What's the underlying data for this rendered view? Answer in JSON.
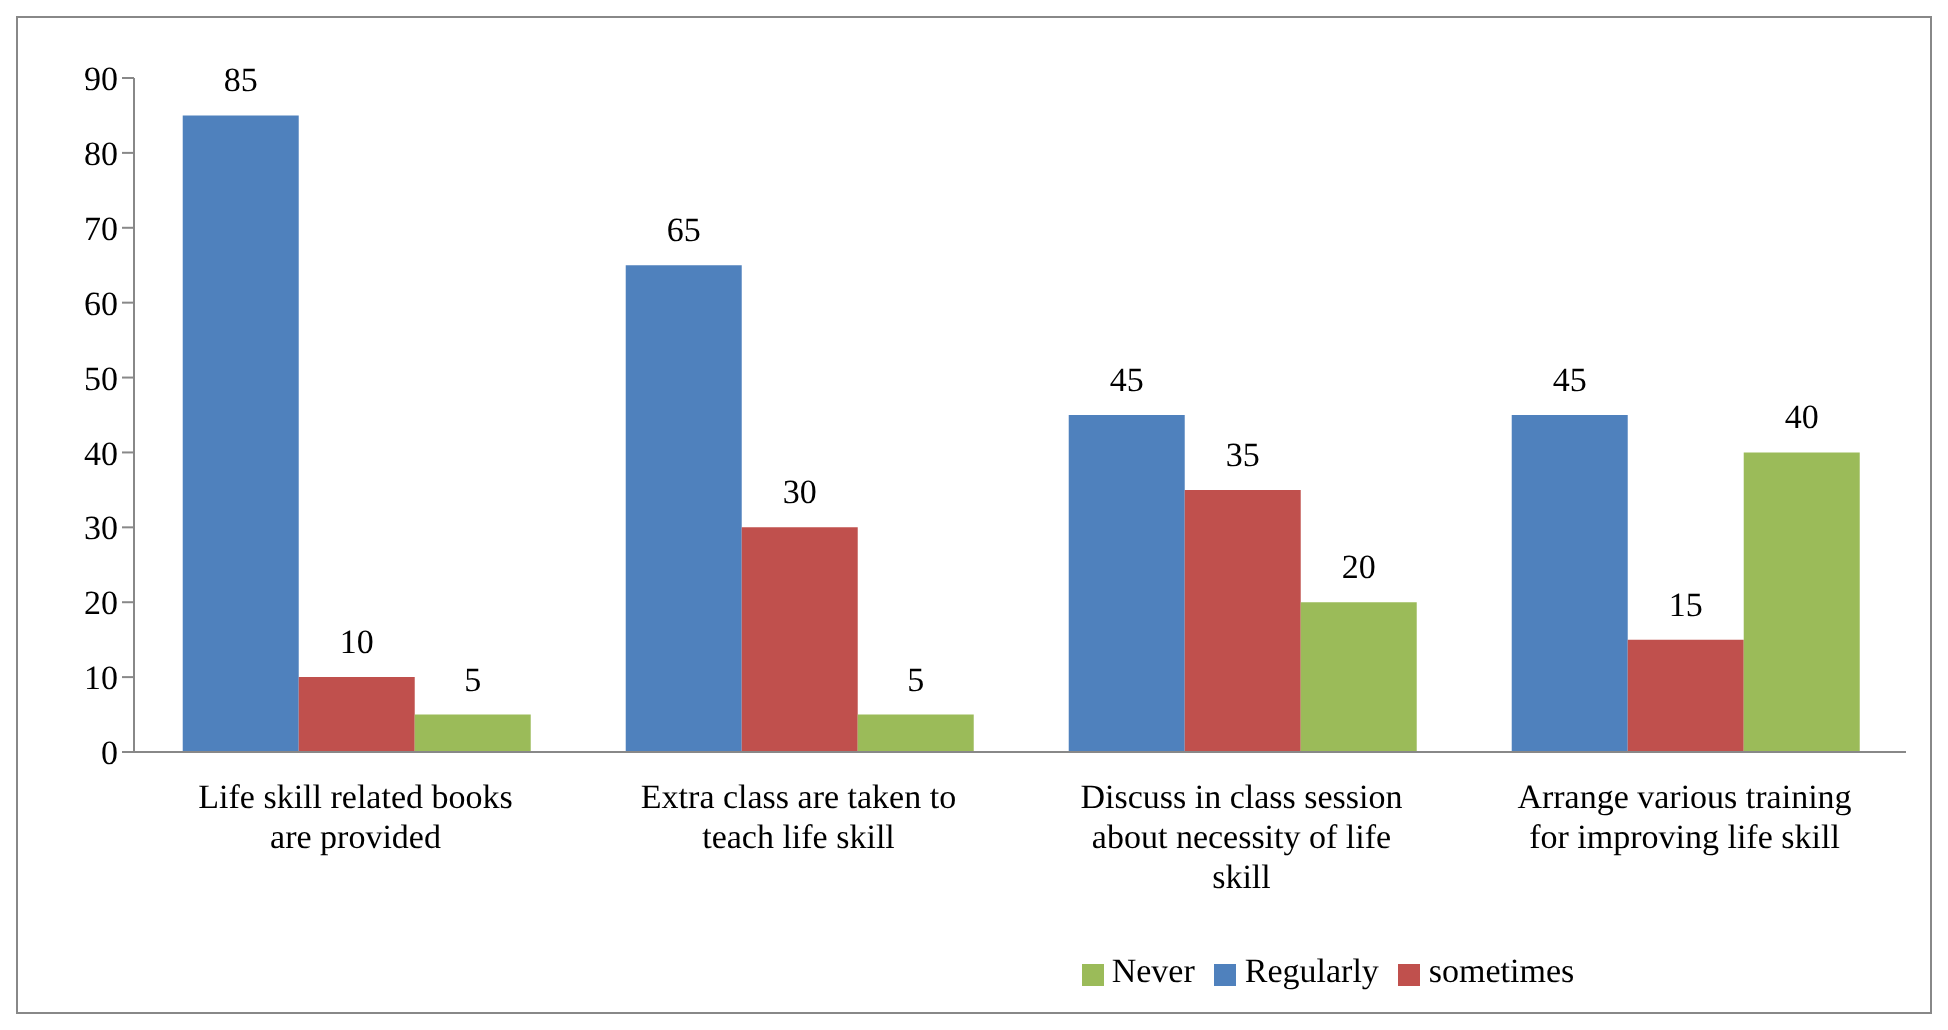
{
  "chart_data": {
    "type": "bar",
    "categories": [
      "Life skill related books are provided",
      "Extra class are taken to teach life skill",
      "Discuss in class session about necessity of life skill",
      "Arrange various training for improving life skill"
    ],
    "series": [
      {
        "name": "Regularly",
        "color": "#4f81bd",
        "values": [
          85,
          65,
          45,
          45
        ]
      },
      {
        "name": "sometimes",
        "color": "#c0504d",
        "values": [
          10,
          30,
          35,
          15
        ]
      },
      {
        "name": "Never",
        "color": "#9bbb59",
        "values": [
          5,
          5,
          20,
          40
        ]
      }
    ],
    "ylim": [
      0,
      90
    ],
    "yticks": [
      0,
      10,
      20,
      30,
      40,
      50,
      60,
      70,
      80,
      90
    ],
    "grid": false,
    "legend": "bottom",
    "data_labels": true
  }
}
